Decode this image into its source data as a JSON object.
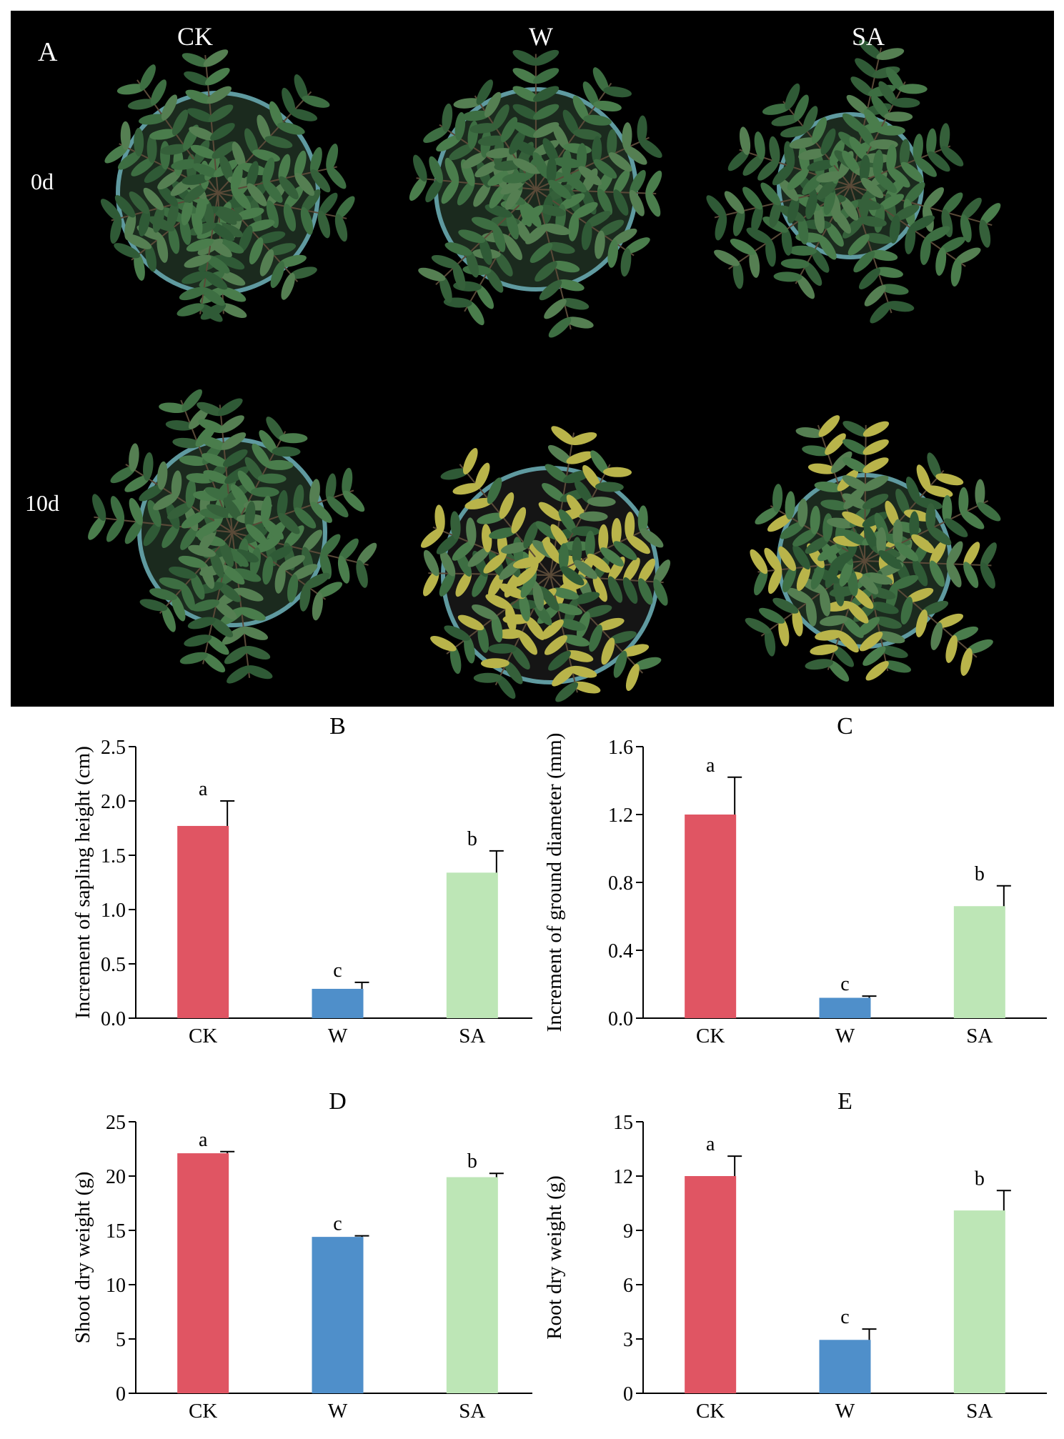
{
  "panel_a": {
    "label": "A",
    "columns": [
      "CK",
      "W",
      "SA"
    ],
    "rows": [
      "0d",
      "10d"
    ]
  },
  "colors": {
    "CK": "#e05563",
    "W": "#4f8fca",
    "SA": "#bde6b6",
    "background_photo": "#000000"
  },
  "chart_data": [
    {
      "id": "B",
      "type": "bar",
      "title": "B",
      "ylabel": "Increment of sapling height (cm)",
      "categories": [
        "CK",
        "W",
        "SA"
      ],
      "values": [
        1.77,
        0.27,
        1.34
      ],
      "errors": [
        0.23,
        0.06,
        0.2
      ],
      "letters": [
        "a",
        "c",
        "b"
      ],
      "ylim": [
        0,
        2.5
      ],
      "yticks": [
        0.0,
        0.5,
        1.0,
        1.5,
        2.0,
        2.5
      ],
      "ytick_labels": [
        "0.0",
        "0.5",
        "1.0",
        "1.5",
        "2.0",
        "2.5"
      ]
    },
    {
      "id": "C",
      "type": "bar",
      "title": "C",
      "ylabel": "Increment of ground diameter (mm)",
      "categories": [
        "CK",
        "W",
        "SA"
      ],
      "values": [
        1.2,
        0.12,
        0.66
      ],
      "errors": [
        0.22,
        0.01,
        0.12
      ],
      "letters": [
        "a",
        "c",
        "b"
      ],
      "ylim": [
        0,
        1.6
      ],
      "yticks": [
        0.0,
        0.4,
        0.8,
        1.2,
        1.6
      ],
      "ytick_labels": [
        "0.0",
        "0.4",
        "0.8",
        "1.2",
        "1.6"
      ]
    },
    {
      "id": "D",
      "type": "bar",
      "title": "D",
      "ylabel": "Shoot dry weight (g)",
      "categories": [
        "CK",
        "W",
        "SA"
      ],
      "values": [
        22.1,
        14.4,
        19.9
      ],
      "errors": [
        0.15,
        0.1,
        0.35
      ],
      "letters": [
        "a",
        "c",
        "b"
      ],
      "ylim": [
        0,
        25
      ],
      "yticks": [
        0,
        5,
        10,
        15,
        20,
        25
      ],
      "ytick_labels": [
        "0",
        "5",
        "10",
        "15",
        "20",
        "25"
      ]
    },
    {
      "id": "E",
      "type": "bar",
      "title": "E",
      "ylabel": "Root dry weight (g)",
      "categories": [
        "CK",
        "W",
        "SA"
      ],
      "values": [
        12.0,
        2.95,
        10.1
      ],
      "errors": [
        1.1,
        0.6,
        1.1
      ],
      "letters": [
        "a",
        "c",
        "b"
      ],
      "ylim": [
        0,
        15
      ],
      "yticks": [
        0,
        3,
        6,
        9,
        12,
        15
      ],
      "ytick_labels": [
        "0",
        "3",
        "6",
        "9",
        "12",
        "15"
      ]
    }
  ]
}
